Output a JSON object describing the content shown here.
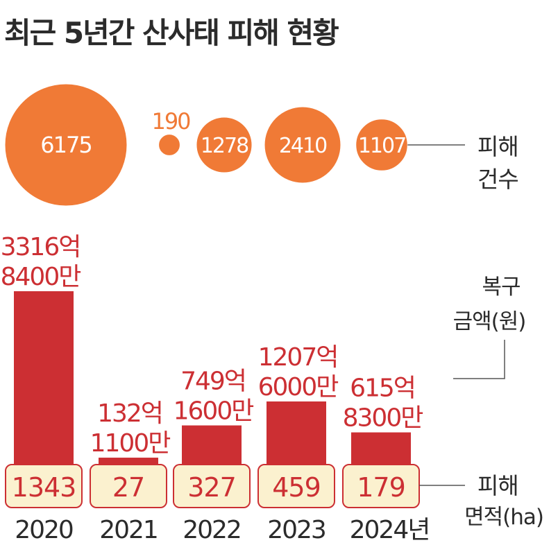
{
  "title": "최근 5년간 산사태 피해 현황",
  "colors": {
    "bubble": "#f07a36",
    "bar": "#cc2f33",
    "cost_text": "#cc2f33",
    "area_box_fill": "#fbf1cf",
    "area_box_stroke": "#cc2f33",
    "area_text": "#cc2f33",
    "bubble_outside_text": "#f07a36",
    "text_dark": "#2b2b2b",
    "leader": "#555555"
  },
  "legend": {
    "count_label": [
      "피해",
      "건수"
    ],
    "cost_label": [
      "복구",
      "금액(원)"
    ],
    "area_label": [
      "피해",
      "면적(ha)"
    ]
  },
  "chart_data": {
    "type": "bar",
    "categories": [
      "2020",
      "2021",
      "2022",
      "2023",
      "2024년"
    ],
    "series": [
      {
        "name": "피해 건수",
        "values": [
          6175,
          190,
          1278,
          2410,
          1107
        ]
      },
      {
        "name": "복구 금액(원)",
        "values": [
          331684000000,
          13211000000,
          74916000000,
          120760000000,
          61583000000
        ],
        "value_labels": [
          [
            "3316억",
            "8400만"
          ],
          [
            "132억",
            "1100만"
          ],
          [
            "749억",
            "1600만"
          ],
          [
            "1207억",
            "6000만"
          ],
          [
            "615억",
            "8300만"
          ]
        ]
      },
      {
        "name": "피해 면적(ha)",
        "values": [
          1343,
          27,
          327,
          459,
          179
        ]
      }
    ],
    "title": "최근 5년간 산사태 피해 현황",
    "xlabel": "",
    "ylabel": "",
    "grid": false
  }
}
